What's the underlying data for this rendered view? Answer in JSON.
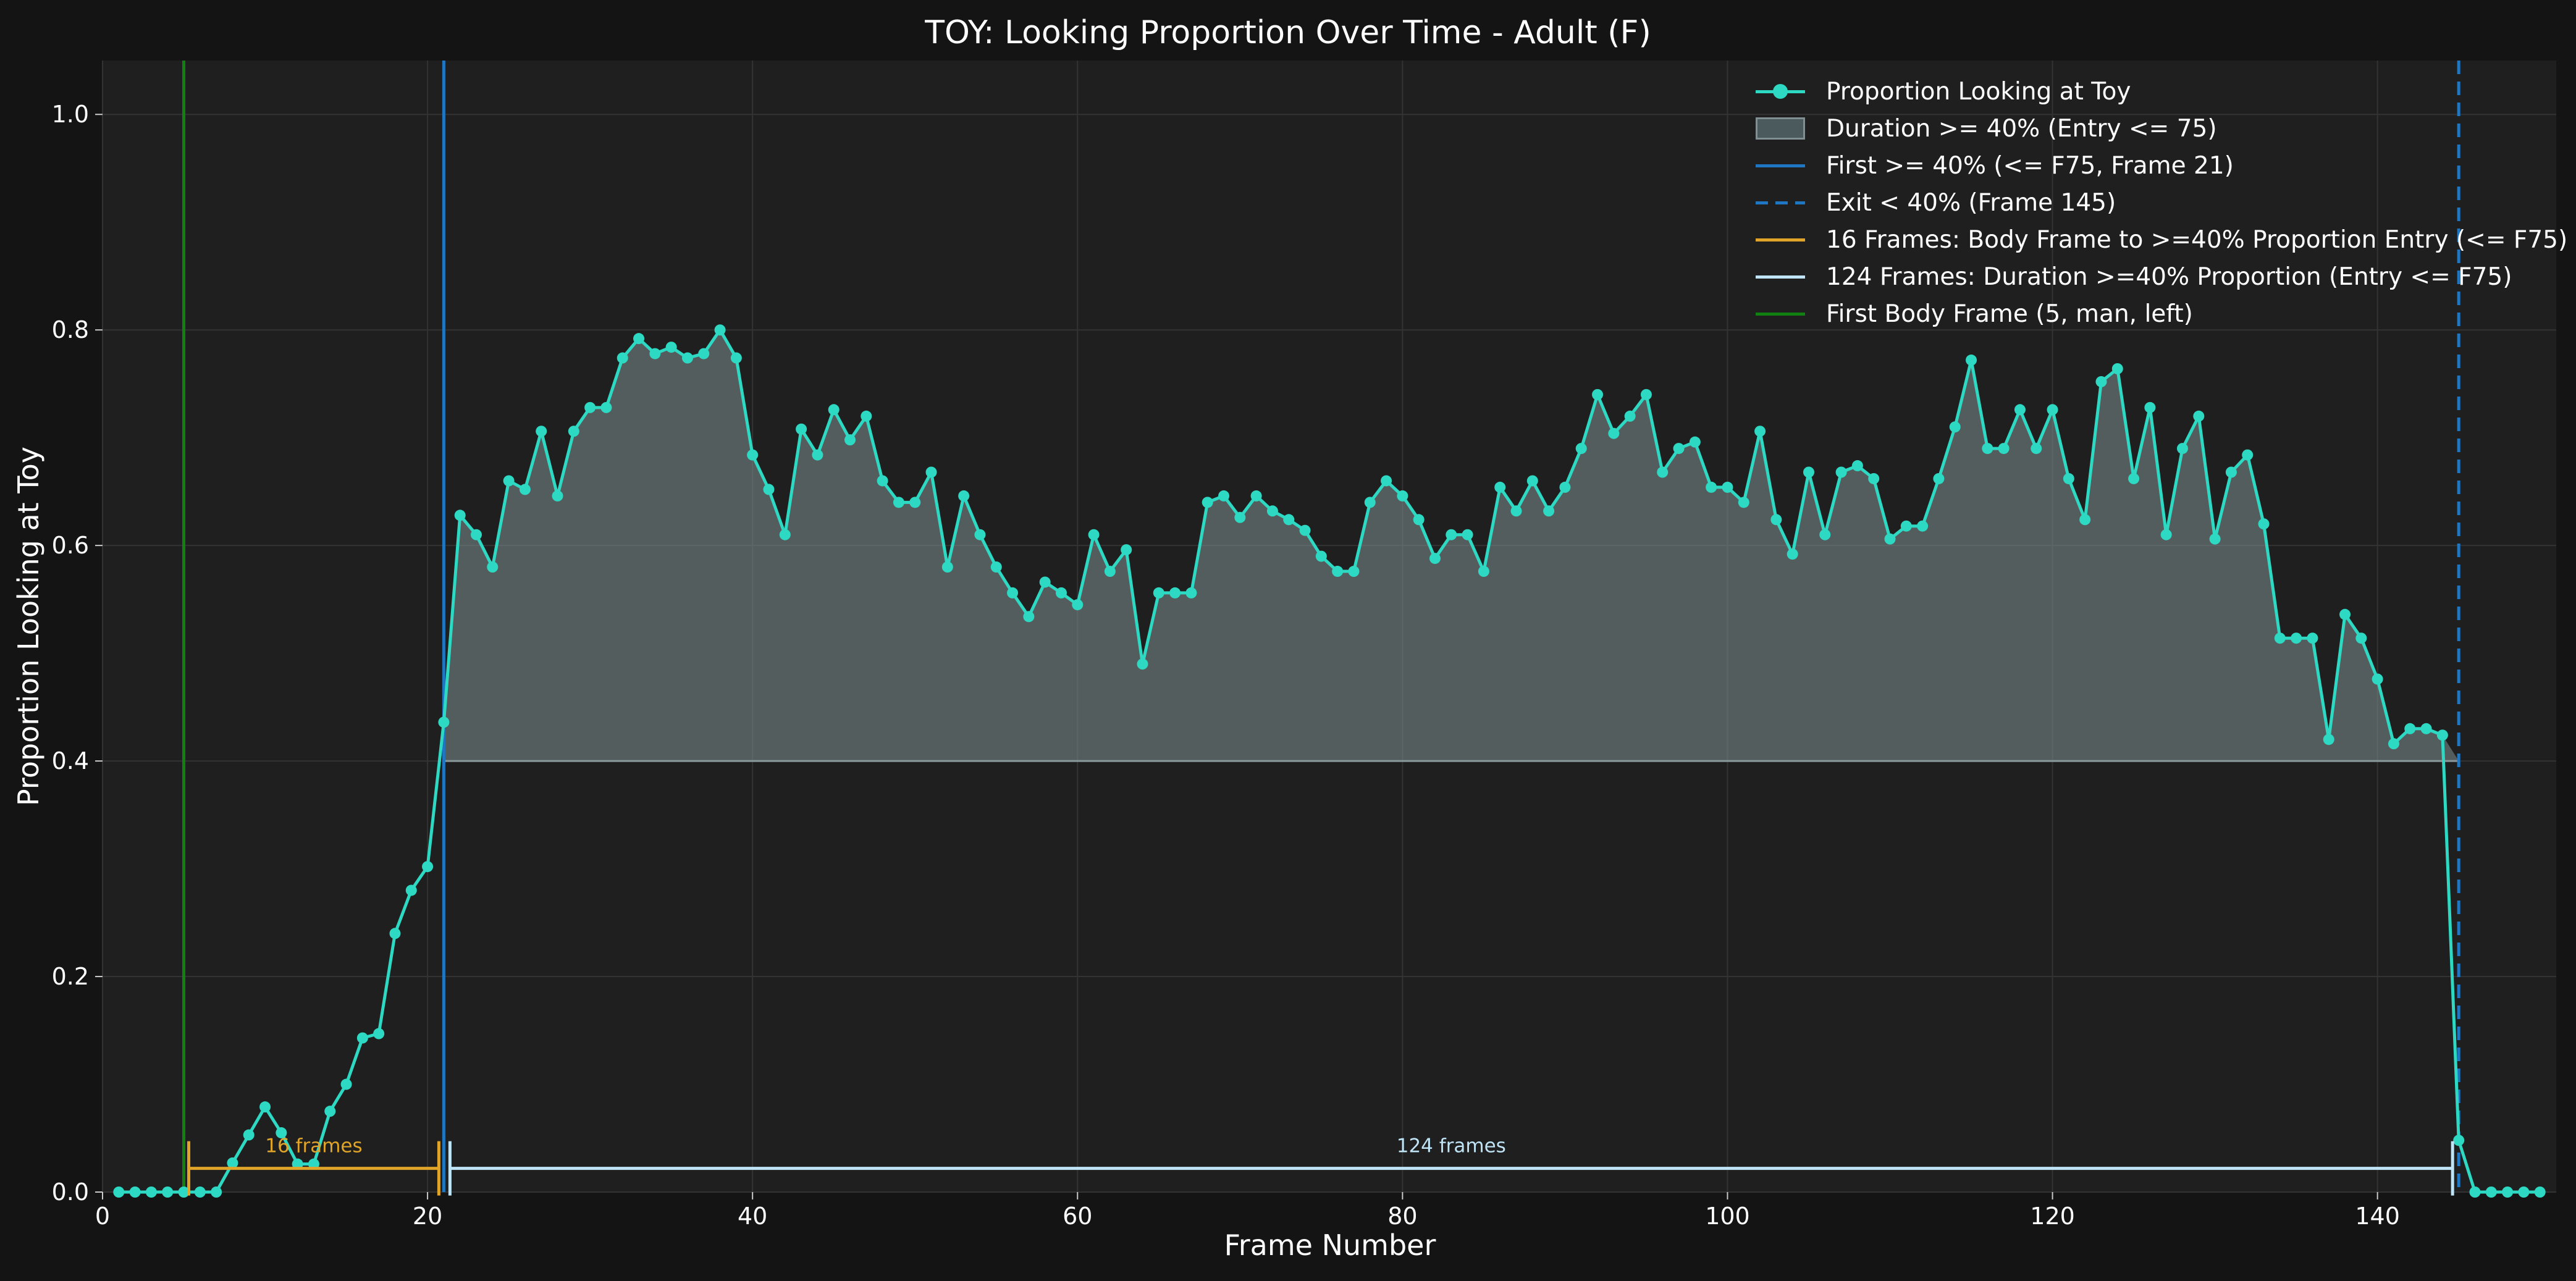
{
  "chart_data": {
    "type": "line",
    "title": "TOY: Looking Proportion Over Time - Adult (F)",
    "xlabel": "Frame Number",
    "ylabel": "Proportion Looking at Toy",
    "xlim": [
      0,
      151
    ],
    "ylim": [
      0,
      1.05
    ],
    "xticks": [
      0,
      20,
      40,
      60,
      80,
      100,
      120,
      140
    ],
    "yticks": [
      0.0,
      0.2,
      0.4,
      0.6,
      0.8,
      1.0
    ],
    "grid": true,
    "legend_position": "top-right",
    "threshold": 0.4,
    "fill_range": [
      21,
      145
    ],
    "x": [
      1,
      2,
      3,
      4,
      5,
      6,
      7,
      8,
      9,
      10,
      11,
      12,
      13,
      14,
      15,
      16,
      17,
      18,
      19,
      20,
      21,
      22,
      23,
      24,
      25,
      26,
      27,
      28,
      29,
      30,
      31,
      32,
      33,
      34,
      35,
      36,
      37,
      38,
      39,
      40,
      41,
      42,
      43,
      44,
      45,
      46,
      47,
      48,
      49,
      50,
      51,
      52,
      53,
      54,
      55,
      56,
      57,
      58,
      59,
      60,
      61,
      62,
      63,
      64,
      65,
      66,
      67,
      68,
      69,
      70,
      71,
      72,
      73,
      74,
      75,
      76,
      77,
      78,
      79,
      80,
      81,
      82,
      83,
      84,
      85,
      86,
      87,
      88,
      89,
      90,
      91,
      92,
      93,
      94,
      95,
      96,
      97,
      98,
      99,
      100,
      101,
      102,
      103,
      104,
      105,
      106,
      107,
      108,
      109,
      110,
      111,
      112,
      113,
      114,
      115,
      116,
      117,
      118,
      119,
      120,
      121,
      122,
      123,
      124,
      125,
      126,
      127,
      128,
      129,
      130,
      131,
      132,
      133,
      134,
      135,
      136,
      137,
      138,
      139,
      140,
      141,
      142,
      143,
      144,
      145,
      146,
      147,
      148,
      149,
      150
    ],
    "series": [
      {
        "name": "Proportion Looking at Toy",
        "color": "#2ed9c3",
        "values": [
          0,
          0,
          0,
          0,
          0,
          0,
          0,
          0.027,
          0.053,
          0.079,
          0.055,
          0.026,
          0.026,
          0.075,
          0.1,
          0.143,
          0.147,
          0.24,
          0.28,
          0.302,
          0.436,
          0.628,
          0.61,
          0.58,
          0.66,
          0.652,
          0.706,
          0.646,
          0.706,
          0.728,
          0.728,
          0.774,
          0.792,
          0.778,
          0.784,
          0.774,
          0.778,
          0.8,
          0.774,
          0.684,
          0.652,
          0.61,
          0.708,
          0.684,
          0.726,
          0.698,
          0.72,
          0.66,
          0.64,
          0.64,
          0.668,
          0.58,
          0.646,
          0.61,
          0.58,
          0.556,
          0.534,
          0.566,
          0.556,
          0.545,
          0.61,
          0.576,
          0.596,
          0.49,
          0.556,
          0.556,
          0.556,
          0.64,
          0.646,
          0.626,
          0.646,
          0.632,
          0.624,
          0.614,
          0.59,
          0.576,
          0.576,
          0.64,
          0.66,
          0.646,
          0.624,
          0.588,
          0.61,
          0.61,
          0.576,
          0.654,
          0.632,
          0.66,
          0.632,
          0.654,
          0.69,
          0.74,
          0.704,
          0.72,
          0.74,
          0.668,
          0.69,
          0.696,
          0.654,
          0.654,
          0.64,
          0.706,
          0.624,
          0.592,
          0.668,
          0.61,
          0.668,
          0.674,
          0.662,
          0.606,
          0.618,
          0.618,
          0.662,
          0.71,
          0.772,
          0.69,
          0.69,
          0.726,
          0.69,
          0.726,
          0.662,
          0.624,
          0.752,
          0.764,
          0.662,
          0.728,
          0.61,
          0.69,
          0.72,
          0.606,
          0.668,
          0.684,
          0.62,
          0.514,
          0.514,
          0.514,
          0.42,
          0.536,
          0.514,
          0.476,
          0.416,
          0.43,
          0.43,
          0.424,
          0.048,
          0,
          0,
          0,
          0,
          0
        ]
      }
    ],
    "vlines": [
      {
        "label": "First >= 40% (<= F75, Frame 21)",
        "x": 21,
        "style": "solid",
        "color": "#1f77c4"
      },
      {
        "label": "Exit < 40% (Frame 145)",
        "x": 145,
        "style": "dashed",
        "color": "#1f77c4"
      },
      {
        "label": "First Body Frame (5, man, left)",
        "x": 5,
        "style": "solid",
        "color": "#108010"
      }
    ],
    "spans": [
      {
        "legend": "16 Frames: Body Frame to >=40% Proportion Entry (<= F75)",
        "text": "16 frames",
        "from": 5,
        "to": 21,
        "color": "#e0a528"
      },
      {
        "legend": "124 Frames: Duration >=40% Proportion (Entry <= F75)",
        "text": "124 frames",
        "from": 21,
        "to": 145,
        "color": "#bfe4f5"
      }
    ],
    "fill_legend": "Duration >= 40% (Entry <= 75)"
  },
  "legend": [
    {
      "label": "Proportion Looking at Toy",
      "kind": "line-marker",
      "color": "#2ed9c3"
    },
    {
      "label": "Duration >= 40% (Entry <= 75)",
      "kind": "box",
      "color": "#4b5a5d"
    },
    {
      "label": "First >= 40% (<= F75, Frame 21)",
      "kind": "line",
      "color": "#1f77c4"
    },
    {
      "label": "Exit < 40% (Frame 145)",
      "kind": "dashed",
      "color": "#1f77c4"
    },
    {
      "label": "16 Frames: Body Frame to >=40% Proportion Entry (<= F75)",
      "kind": "line",
      "color": "#e0a528"
    },
    {
      "label": "124 Frames: Duration >=40% Proportion (Entry <= F75)",
      "kind": "line",
      "color": "#bfe4f5"
    },
    {
      "label": "First Body Frame (5, man, left)",
      "kind": "line",
      "color": "#108010"
    }
  ]
}
